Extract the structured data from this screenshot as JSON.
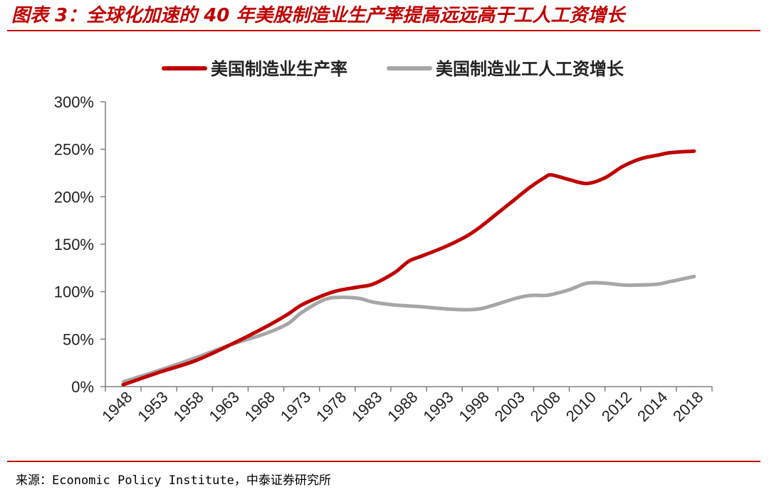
{
  "title": "图表 3：全球化加速的 40 年美股制造业生产率提高远远高于工人工资增长",
  "source": "来源：Economic Policy Institute，中泰证券研究所",
  "chart_data": {
    "type": "line",
    "categories": [
      "1948",
      "1953",
      "1958",
      "1963",
      "1968",
      "1973",
      "1978",
      "1983",
      "1988",
      "1993",
      "1998",
      "2003",
      "2008",
      "2010",
      "2012",
      "2014",
      "2018"
    ],
    "y_ticks": [
      "0%",
      "50%",
      "100%",
      "150%",
      "200%",
      "250%",
      "300%"
    ],
    "ylim": [
      0,
      300
    ],
    "grid": false,
    "legend_position": "top",
    "series": [
      {
        "name": "美国制造业生产率",
        "color": "#c00000",
        "x": [
          1948,
          1953,
          1958,
          1963,
          1968,
          1971,
          1973,
          1976,
          1978,
          1981,
          1983,
          1986,
          1988,
          1990,
          1993,
          1996,
          1998,
          2000,
          2003,
          2005,
          2007,
          2008,
          2009,
          2010,
          2011,
          2012,
          2013,
          2014,
          2015,
          2016,
          2018
        ],
        "values": [
          2,
          15,
          27,
          44,
          63,
          76,
          86,
          96,
          101,
          105,
          108,
          120,
          132,
          138,
          147,
          158,
          168,
          180,
          198,
          210,
          220,
          223,
          218,
          214,
          220,
          232,
          240,
          244,
          246,
          247,
          248
        ]
      },
      {
        "name": "美国制造业工人工资增长",
        "color": "#a6a6a6",
        "x": [
          1948,
          1953,
          1958,
          1963,
          1968,
          1971,
          1973,
          1976,
          1978,
          1981,
          1983,
          1986,
          1988,
          1990,
          1993,
          1996,
          1998,
          2000,
          2003,
          2005,
          2007,
          2008,
          2009,
          2010,
          2011,
          2012,
          2013,
          2014,
          2015,
          2016,
          2018
        ],
        "values": [
          5,
          17,
          30,
          44,
          56,
          66,
          78,
          91,
          94,
          93,
          89,
          86,
          85,
          84,
          82,
          81,
          82,
          86,
          93,
          96,
          96,
          97,
          102,
          109,
          109,
          107,
          107,
          108,
          110,
          112,
          116
        ]
      }
    ]
  }
}
